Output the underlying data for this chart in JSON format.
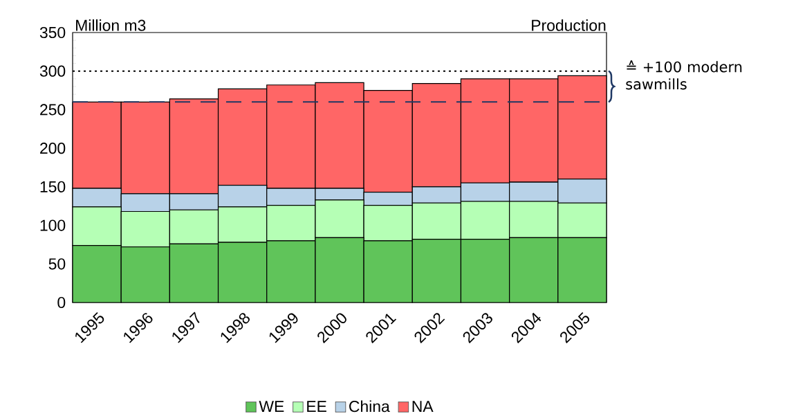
{
  "chart_data": {
    "type": "bar",
    "stacked": true,
    "title": "Production",
    "ylabel": "Million m3",
    "categories": [
      "1995",
      "1996",
      "1997",
      "1998",
      "1999",
      "2000",
      "2001",
      "2002",
      "2003",
      "2004",
      "2005"
    ],
    "series": [
      {
        "name": "WE",
        "color": "#60c45a",
        "values": [
          74,
          72,
          76,
          78,
          80,
          84,
          80,
          82,
          82,
          84,
          84
        ]
      },
      {
        "name": "EE",
        "color": "#b5ffb5",
        "values": [
          50,
          46,
          44,
          46,
          46,
          49,
          46,
          47,
          49,
          47,
          45
        ]
      },
      {
        "name": "China",
        "color": "#b8d2e8",
        "values": [
          24,
          23,
          21,
          28,
          22,
          15,
          17,
          21,
          24,
          25,
          31
        ]
      },
      {
        "name": "NA",
        "color": "#ff6666",
        "values": [
          112,
          119,
          123,
          125,
          134,
          137,
          132,
          134,
          135,
          134,
          134
        ]
      }
    ],
    "ylim": [
      0,
      350
    ],
    "yticks": [
      0,
      50,
      100,
      150,
      200,
      250,
      300,
      350
    ],
    "ref_lines": [
      {
        "axis": "y",
        "value": 300,
        "color": "#000000",
        "line_style": "dotted"
      },
      {
        "axis": "y",
        "value": 260,
        "color": "#1f3864",
        "line_style": "dashed"
      }
    ],
    "annotations": [
      "≙ +100 modern sawmills"
    ],
    "legend": "bottom"
  }
}
